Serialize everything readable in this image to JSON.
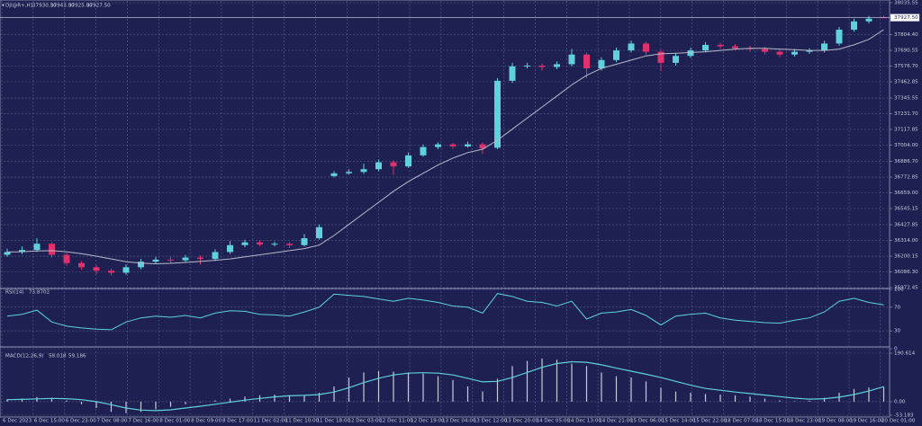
{
  "chart_data": [
    {
      "type": "candlestick",
      "title": "DJI@R+,H1",
      "header_values": [
        {
          "value": 37930.5,
          "label": "37930.50"
        },
        {
          "value": 37943,
          "label": "37943.00"
        },
        {
          "value": 37925,
          "label": "37925.00"
        },
        {
          "value": 37927.5,
          "label": "37927.50"
        }
      ],
      "open": [
        36210,
        36230,
        36245,
        36290,
        36210,
        36150,
        36120,
        36095,
        36080,
        36120,
        36160,
        36175,
        36170,
        36190,
        36180,
        36230,
        36280,
        36300,
        36285,
        36290,
        36280,
        36330,
        36780,
        36800,
        36810,
        36830,
        36880,
        36850,
        36930,
        36990,
        37010,
        36995,
        37010,
        36985,
        37470,
        37575,
        37580,
        37570,
        37590,
        37660,
        37560,
        37620,
        37690,
        37740,
        37680,
        37600,
        37650,
        37690,
        37730,
        37720,
        37705,
        37700,
        37680,
        37660,
        37680,
        37690,
        37740,
        37840,
        37900,
        37930.5
      ],
      "high": [
        36255,
        36270,
        36330,
        36300,
        36225,
        36165,
        36135,
        36110,
        36140,
        36180,
        36195,
        36195,
        36210,
        36205,
        36250,
        36310,
        36320,
        36315,
        36305,
        36300,
        36360,
        36430,
        36815,
        36830,
        36870,
        36900,
        36895,
        36950,
        37010,
        37025,
        37020,
        37030,
        37025,
        37490,
        37600,
        37600,
        37595,
        37610,
        37700,
        37675,
        37640,
        37710,
        37760,
        37755,
        37695,
        37670,
        37710,
        37750,
        37745,
        37735,
        37725,
        37715,
        37695,
        37700,
        37705,
        37760,
        37860,
        37920,
        37940,
        37943
      ],
      "low": [
        36195,
        36215,
        36230,
        36190,
        36130,
        36100,
        36070,
        36060,
        36065,
        36105,
        36145,
        36150,
        36155,
        36140,
        36165,
        36215,
        36265,
        36270,
        36270,
        36260,
        36270,
        36320,
        36770,
        36790,
        36795,
        36815,
        36790,
        36840,
        36920,
        36975,
        36980,
        36985,
        36940,
        36975,
        37455,
        37560,
        37545,
        37555,
        37575,
        37490,
        37545,
        37605,
        37675,
        37660,
        37540,
        37580,
        37635,
        37675,
        37700,
        37690,
        37680,
        37660,
        37640,
        37645,
        37665,
        37675,
        37725,
        37825,
        37885,
        37925
      ],
      "close": [
        36230,
        36245,
        36290,
        36210,
        36150,
        36120,
        36095,
        36080,
        36120,
        36160,
        36175,
        36170,
        36190,
        36180,
        36230,
        36280,
        36300,
        36285,
        36290,
        36280,
        36330,
        36410,
        36800,
        36810,
        36830,
        36880,
        36850,
        36930,
        36990,
        37010,
        36995,
        37010,
        36980,
        37470,
        37575,
        37580,
        37570,
        37590,
        37660,
        37560,
        37620,
        37690,
        37740,
        37680,
        37600,
        37650,
        37690,
        37730,
        37720,
        37705,
        37700,
        37680,
        37660,
        37680,
        37690,
        37740,
        37840,
        37900,
        37920,
        37927.5
      ],
      "ma": {
        "color": "#b9bac8",
        "values": [
          36230,
          36232,
          36238,
          36240,
          36232,
          36218,
          36200,
          36180,
          36160,
          36150,
          36145,
          36148,
          36155,
          36162,
          36170,
          36180,
          36195,
          36210,
          36225,
          36240,
          36255,
          36280,
          36350,
          36430,
          36510,
          36590,
          36670,
          36740,
          36800,
          36860,
          36910,
          36950,
          36975,
          37040,
          37120,
          37200,
          37280,
          37360,
          37440,
          37510,
          37560,
          37590,
          37620,
          37650,
          37665,
          37670,
          37675,
          37680,
          37690,
          37700,
          37705,
          37705,
          37700,
          37695,
          37690,
          37690,
          37700,
          37730,
          37770,
          37840
        ]
      },
      "up_color": "#5fd0dc",
      "down_color": "#e0306e",
      "current_price": {
        "value": 37927.5,
        "label": "37927.50"
      },
      "ylim": [
        35972.45,
        38035.55
      ],
      "yticks": [
        {
          "value": 38035.55,
          "label": "38035.55"
        },
        {
          "value": 37804.4,
          "label": "37804.40"
        },
        {
          "value": 37690.55,
          "label": "37690.55"
        },
        {
          "value": 37576.7,
          "label": "37576.70"
        },
        {
          "value": 37462.85,
          "label": "37462.85"
        },
        {
          "value": 37345.55,
          "label": "37345.55"
        },
        {
          "value": 37231.7,
          "label": "37231.70"
        },
        {
          "value": 37117.85,
          "label": "37117.85"
        },
        {
          "value": 37004,
          "label": "37004.00"
        },
        {
          "value": 36886.7,
          "label": "36886.70"
        },
        {
          "value": 36772.85,
          "label": "36772.85"
        },
        {
          "value": 36659,
          "label": "36659.00"
        },
        {
          "value": 36545.15,
          "label": "36545.15"
        },
        {
          "value": 36427.85,
          "label": "36427.85"
        },
        {
          "value": 36314,
          "label": "36314.00"
        },
        {
          "value": 36200.15,
          "label": "36200.15"
        },
        {
          "value": 36086.3,
          "label": "36086.30"
        },
        {
          "value": 35972.45,
          "label": "35972.45"
        }
      ],
      "grid": true
    },
    {
      "type": "line",
      "title": "RSI(14)",
      "color": "#5fd0dc",
      "values": [
        55,
        58,
        65,
        45,
        38,
        35,
        33,
        32,
        45,
        52,
        55,
        53,
        56,
        52,
        60,
        64,
        63,
        58,
        57,
        55,
        62,
        70,
        92,
        90,
        88,
        84,
        80,
        85,
        82,
        78,
        72,
        70,
        60,
        93,
        88,
        80,
        78,
        72,
        80,
        50,
        60,
        62,
        66,
        56,
        40,
        55,
        58,
        60,
        52,
        48,
        46,
        44,
        43,
        48,
        52,
        62,
        80,
        85,
        78,
        73.8702
      ],
      "ylim": [
        0,
        100
      ],
      "yticks": [
        0,
        30,
        70,
        100
      ],
      "grid": true
    },
    {
      "type": "macd",
      "title": "MACD(12,26,9)",
      "histogram_color": "#c8cad8",
      "signal_color": "#5fd0dc",
      "histogram": [
        10,
        12,
        18,
        15,
        5,
        -10,
        -25,
        -40,
        -45,
        -40,
        -30,
        -20,
        -10,
        -2,
        5,
        12,
        20,
        25,
        28,
        26,
        25,
        35,
        60,
        95,
        115,
        120,
        118,
        115,
        110,
        100,
        85,
        60,
        40,
        90,
        140,
        160,
        170,
        165,
        150,
        140,
        115,
        100,
        95,
        80,
        55,
        40,
        35,
        30,
        28,
        25,
        20,
        12,
        5,
        2,
        4,
        15,
        35,
        50,
        56,
        58.018
      ],
      "signal": [
        8,
        9,
        11,
        13,
        12,
        8,
        0,
        -12,
        -25,
        -33,
        -35,
        -32,
        -25,
        -18,
        -10,
        -2,
        6,
        13,
        19,
        23,
        25,
        28,
        38,
        55,
        75,
        92,
        105,
        112,
        114,
        112,
        105,
        92,
        78,
        80,
        95,
        115,
        135,
        150,
        157,
        155,
        145,
        132,
        120,
        108,
        95,
        80,
        65,
        52,
        45,
        38,
        32,
        26,
        20,
        14,
        10,
        12,
        18,
        28,
        42,
        59.186
      ],
      "ylim": [
        -53.183,
        190.614
      ],
      "yticks": [
        -53.183,
        {
          "value": 0,
          "label": "0.00"
        },
        190.614
      ],
      "grid": true,
      "x_labels": [
        "6 Dec 2023",
        "6 Dec 15:00",
        "6 Dec 23:00",
        "7 Dec 08:00",
        "7 Dec 16:00",
        "8 Dec 01:00",
        "8 Dec 09:00",
        "8 Dec 17:00",
        "11 Dec 02:00",
        "11 Dec 10:00",
        "11 Dec 18:00",
        "12 Dec 03:00",
        "12 Dec 11:00",
        "12 Dec 19:00",
        "13 Dec 04:00",
        "13 Dec 12:00",
        "13 Dec 20:00",
        "14 Dec 05:00",
        "14 Dec 13:00",
        "14 Dec 21:00",
        "15 Dec 06:00",
        "15 Dec 14:00",
        "15 Dec 22:00",
        "18 Dec 07:00",
        "18 Dec 15:00",
        "18 Dec 23:00",
        "19 Dec 08:00",
        "19 Dec 16:00",
        "20 Dec 01:00"
      ]
    }
  ]
}
